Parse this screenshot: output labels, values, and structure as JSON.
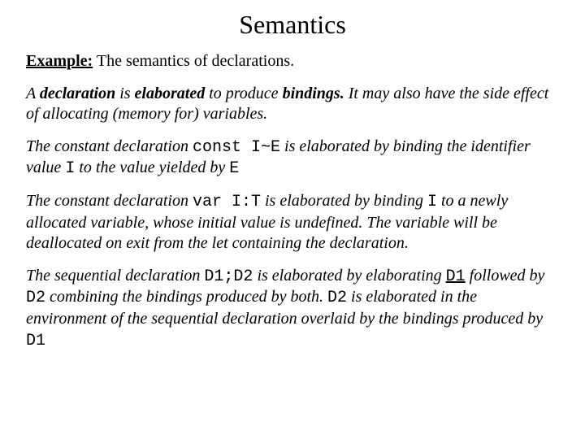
{
  "title": "Semantics",
  "example_label": "Example:",
  "example_rest": " The semantics of declarations.",
  "p1_a": "A ",
  "p1_decl": "declaration",
  "p1_b": " is ",
  "p1_elab": "elaborated",
  "p1_c": " to produce ",
  "p1_bind": "bindings.",
  "p1_d": " It may also have the side effect of allocating (memory for) variables.",
  "p2_a": "The constant declaration ",
  "p2_code": "const I~E",
  "p2_b": " is elaborated by binding the identifier value ",
  "p2_I": "I",
  "p2_c": " to the value yielded by ",
  "p2_E": "E",
  "p3_a": "The constant declaration ",
  "p3_code": "var I:T",
  "p3_b": " is elaborated by binding ",
  "p3_I": "I",
  "p3_c": " to a newly allocated variable, whose initial value is undefined. The variable will be deallocated on exit from the let containing the declaration.",
  "p4_a": "The sequential declaration ",
  "p4_code": "D1;D2",
  "p4_b": " is elaborated by elaborating ",
  "p4_D1a": "D1",
  "p4_c": " followed by ",
  "p4_D2a": "D2",
  "p4_d": " combining the bindings produced by both. ",
  "p4_D2b": "D2",
  "p4_e": " is elaborated in the environment of the sequential declaration overlaid by the bindings produced by ",
  "p4_D1b": "D1"
}
